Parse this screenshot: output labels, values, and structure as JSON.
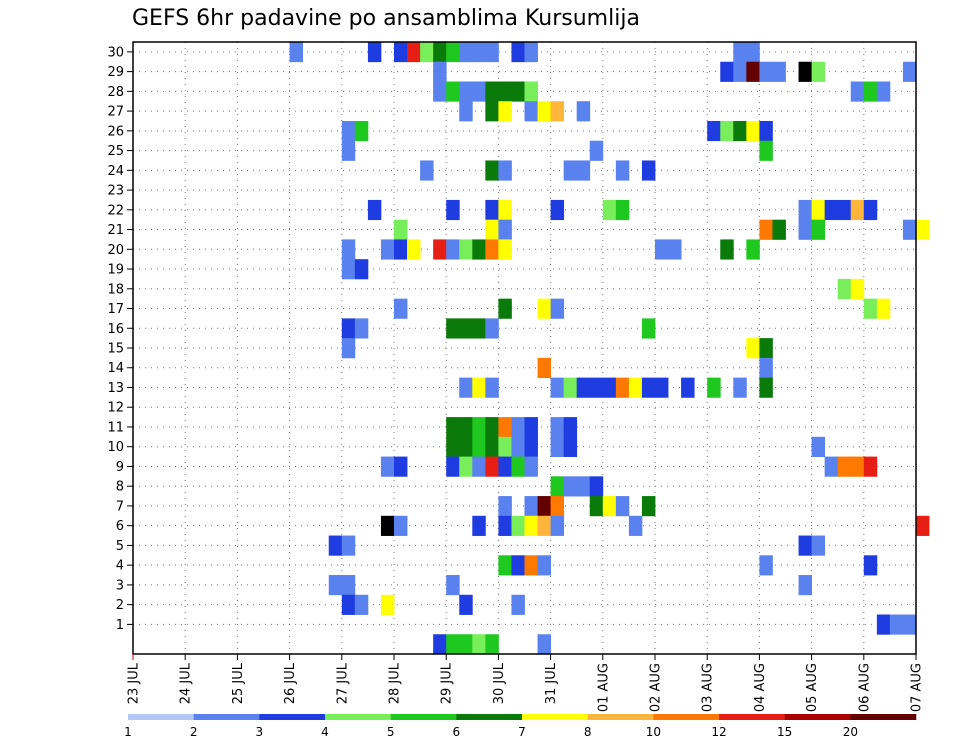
{
  "chart_data": {
    "type": "heatmap",
    "title": "GEFS 6hr padavine po ansamblima Kursumlija",
    "xlabel": "",
    "ylabel": "",
    "x_ticks": [
      "23 JUL",
      "24 JUL",
      "25 JUL",
      "26 JUL",
      "27 JUL",
      "28 JUL",
      "29 JUL",
      "30 JUL",
      "31 JUL",
      "01 AUG",
      "02 AUG",
      "03 AUG",
      "04 AUG",
      "05 AUG",
      "06 AUG",
      "07 AUG"
    ],
    "y_ticks": [
      "1",
      "2",
      "3",
      "4",
      "5",
      "6",
      "7",
      "8",
      "9",
      "10",
      "11",
      "12",
      "13",
      "14",
      "15",
      "16",
      "17",
      "18",
      "19",
      "20",
      "21",
      "22",
      "23",
      "24",
      "25",
      "26",
      "27",
      "28",
      "29",
      "30"
    ],
    "x_range_days": [
      0,
      15
    ],
    "y_range": [
      0,
      30
    ],
    "step_hours": 6,
    "grid": true,
    "colorbar": {
      "labels": [
        "1",
        "2",
        "3",
        "4",
        "5",
        "6",
        "7",
        "8",
        "10",
        "12",
        "15",
        "20"
      ],
      "colors": [
        "#b4c8f8",
        "#5a82ee",
        "#1e3ce0",
        "#78ee5a",
        "#1ec81e",
        "#0a7a0a",
        "#ffff00",
        "#ffb43c",
        "#ff7800",
        "#e61e14",
        "#aa0000",
        "#640000"
      ]
    },
    "cells": [
      {
        "ens": 30,
        "t": [
          [
            12,
            1
          ],
          [
            18,
            2
          ],
          [
            20,
            2
          ],
          [
            21,
            9
          ],
          [
            22,
            3
          ],
          [
            23,
            5
          ],
          [
            24,
            4
          ],
          [
            25,
            1
          ],
          [
            26,
            1
          ],
          [
            27,
            1
          ],
          [
            29,
            2
          ],
          [
            30,
            1
          ],
          [
            46,
            1
          ],
          [
            47,
            1
          ]
        ]
      },
      {
        "ens": 29,
        "t": [
          [
            23,
            1
          ],
          [
            45,
            2
          ],
          [
            46,
            1
          ],
          [
            47,
            11
          ],
          [
            48,
            1
          ],
          [
            49,
            1
          ],
          [
            51,
            12
          ],
          [
            52,
            3
          ],
          [
            59,
            1
          ]
        ]
      },
      {
        "ens": 28,
        "t": [
          [
            23,
            1
          ],
          [
            24,
            4
          ],
          [
            25,
            1
          ],
          [
            26,
            1
          ],
          [
            27,
            5
          ],
          [
            28,
            5
          ],
          [
            29,
            5
          ],
          [
            30,
            3
          ],
          [
            55,
            1
          ],
          [
            56,
            4
          ],
          [
            57,
            1
          ]
        ]
      },
      {
        "ens": 27,
        "t": [
          [
            25,
            1
          ],
          [
            27,
            5
          ],
          [
            28,
            6
          ],
          [
            30,
            1
          ],
          [
            31,
            6
          ],
          [
            32,
            7
          ],
          [
            34,
            1
          ]
        ]
      },
      {
        "ens": 26,
        "t": [
          [
            16,
            1
          ],
          [
            17,
            4
          ],
          [
            44,
            2
          ],
          [
            45,
            3
          ],
          [
            46,
            5
          ],
          [
            47,
            6
          ],
          [
            48,
            2
          ]
        ]
      },
      {
        "ens": 25,
        "t": [
          [
            16,
            1
          ],
          [
            35,
            1
          ],
          [
            48,
            4
          ]
        ]
      },
      {
        "ens": 24,
        "t": [
          [
            22,
            1
          ],
          [
            27,
            5
          ],
          [
            28,
            1
          ],
          [
            33,
            1
          ],
          [
            34,
            1
          ],
          [
            37,
            1
          ],
          [
            39,
            2
          ]
        ]
      },
      {
        "ens": 22,
        "t": [
          [
            18,
            2
          ],
          [
            24,
            2
          ],
          [
            27,
            2
          ],
          [
            28,
            6
          ],
          [
            32,
            2
          ],
          [
            36,
            3
          ],
          [
            37,
            4
          ],
          [
            51,
            1
          ],
          [
            52,
            6
          ],
          [
            53,
            2
          ],
          [
            54,
            2
          ],
          [
            55,
            7
          ],
          [
            56,
            2
          ]
        ]
      },
      {
        "ens": 21,
        "t": [
          [
            20,
            3
          ],
          [
            27,
            6
          ],
          [
            28,
            1
          ],
          [
            48,
            8
          ],
          [
            49,
            5
          ],
          [
            51,
            1
          ],
          [
            52,
            4
          ],
          [
            59,
            1
          ],
          [
            60,
            6
          ]
        ]
      },
      {
        "ens": 20,
        "t": [
          [
            16,
            1
          ],
          [
            19,
            1
          ],
          [
            20,
            2
          ],
          [
            21,
            6
          ],
          [
            23,
            9
          ],
          [
            24,
            1
          ],
          [
            25,
            3
          ],
          [
            26,
            5
          ],
          [
            27,
            8
          ],
          [
            28,
            6
          ],
          [
            40,
            1
          ],
          [
            41,
            1
          ],
          [
            45,
            5
          ],
          [
            47,
            4
          ]
        ]
      },
      {
        "ens": 19,
        "t": [
          [
            16,
            1
          ],
          [
            17,
            2
          ]
        ]
      },
      {
        "ens": 18,
        "t": [
          [
            54,
            3
          ],
          [
            55,
            6
          ]
        ]
      },
      {
        "ens": 17,
        "t": [
          [
            20,
            1
          ],
          [
            28,
            5
          ],
          [
            31,
            6
          ],
          [
            32,
            1
          ],
          [
            56,
            3
          ],
          [
            57,
            6
          ]
        ]
      },
      {
        "ens": 16,
        "t": [
          [
            16,
            2
          ],
          [
            17,
            1
          ],
          [
            24,
            5
          ],
          [
            25,
            5
          ],
          [
            26,
            5
          ],
          [
            27,
            1
          ],
          [
            39,
            4
          ]
        ]
      },
      {
        "ens": 15,
        "t": [
          [
            16,
            1
          ],
          [
            47,
            6
          ],
          [
            48,
            5
          ]
        ]
      },
      {
        "ens": 14,
        "t": [
          [
            31,
            8
          ],
          [
            48,
            1
          ]
        ]
      },
      {
        "ens": 13,
        "t": [
          [
            25,
            1
          ],
          [
            26,
            6
          ],
          [
            27,
            1
          ],
          [
            32,
            1
          ],
          [
            33,
            3
          ],
          [
            34,
            2
          ],
          [
            35,
            2
          ],
          [
            36,
            2
          ],
          [
            37,
            8
          ],
          [
            38,
            6
          ],
          [
            39,
            2
          ],
          [
            40,
            2
          ],
          [
            42,
            2
          ],
          [
            44,
            4
          ],
          [
            46,
            1
          ],
          [
            48,
            5
          ]
        ]
      },
      {
        "ens": 11,
        "t": [
          [
            24,
            5
          ],
          [
            25,
            5
          ],
          [
            26,
            4
          ],
          [
            27,
            5
          ],
          [
            28,
            8
          ],
          [
            29,
            1
          ],
          [
            30,
            2
          ],
          [
            32,
            1
          ],
          [
            33,
            2
          ]
        ]
      },
      {
        "ens": 10,
        "t": [
          [
            24,
            5
          ],
          [
            25,
            5
          ],
          [
            26,
            4
          ],
          [
            27,
            5
          ],
          [
            28,
            3
          ],
          [
            29,
            1
          ],
          [
            30,
            2
          ],
          [
            32,
            1
          ],
          [
            33,
            2
          ],
          [
            52,
            1
          ]
        ]
      },
      {
        "ens": 9,
        "t": [
          [
            19,
            1
          ],
          [
            20,
            2
          ],
          [
            24,
            2
          ],
          [
            25,
            3
          ],
          [
            26,
            1
          ],
          [
            27,
            9
          ],
          [
            28,
            2
          ],
          [
            29,
            4
          ],
          [
            30,
            1
          ],
          [
            53,
            1
          ],
          [
            54,
            8
          ],
          [
            55,
            8
          ],
          [
            56,
            9
          ]
        ]
      },
      {
        "ens": 8,
        "t": [
          [
            32,
            4
          ],
          [
            33,
            1
          ],
          [
            34,
            1
          ],
          [
            35,
            2
          ]
        ]
      },
      {
        "ens": 7,
        "t": [
          [
            28,
            1
          ],
          [
            30,
            1
          ],
          [
            31,
            11
          ],
          [
            32,
            8
          ],
          [
            35,
            5
          ],
          [
            36,
            6
          ],
          [
            37,
            1
          ],
          [
            39,
            5
          ]
        ]
      },
      {
        "ens": 6,
        "t": [
          [
            19,
            12
          ],
          [
            20,
            1
          ],
          [
            26,
            2
          ],
          [
            28,
            2
          ],
          [
            29,
            3
          ],
          [
            30,
            6
          ],
          [
            31,
            7
          ],
          [
            32,
            1
          ],
          [
            38,
            1
          ],
          [
            60,
            9
          ]
        ]
      },
      {
        "ens": 5,
        "t": [
          [
            15,
            2
          ],
          [
            16,
            1
          ],
          [
            51,
            2
          ],
          [
            52,
            1
          ]
        ]
      },
      {
        "ens": 4,
        "t": [
          [
            28,
            4
          ],
          [
            29,
            2
          ],
          [
            30,
            8
          ],
          [
            31,
            1
          ],
          [
            48,
            1
          ],
          [
            56,
            2
          ]
        ]
      },
      {
        "ens": 3,
        "t": [
          [
            15,
            1
          ],
          [
            16,
            1
          ],
          [
            24,
            1
          ],
          [
            51,
            1
          ]
        ]
      },
      {
        "ens": 2,
        "t": [
          [
            16,
            2
          ],
          [
            17,
            1
          ],
          [
            19,
            6
          ],
          [
            25,
            2
          ],
          [
            29,
            1
          ]
        ]
      },
      {
        "ens": 1,
        "t": [
          [
            57,
            2
          ],
          [
            58,
            1
          ],
          [
            59,
            1
          ]
        ]
      },
      {
        "ens": 0,
        "t": [
          [
            23,
            2
          ],
          [
            24,
            4
          ],
          [
            25,
            4
          ],
          [
            26,
            3
          ],
          [
            27,
            4
          ],
          [
            31,
            1
          ]
        ]
      }
    ]
  }
}
